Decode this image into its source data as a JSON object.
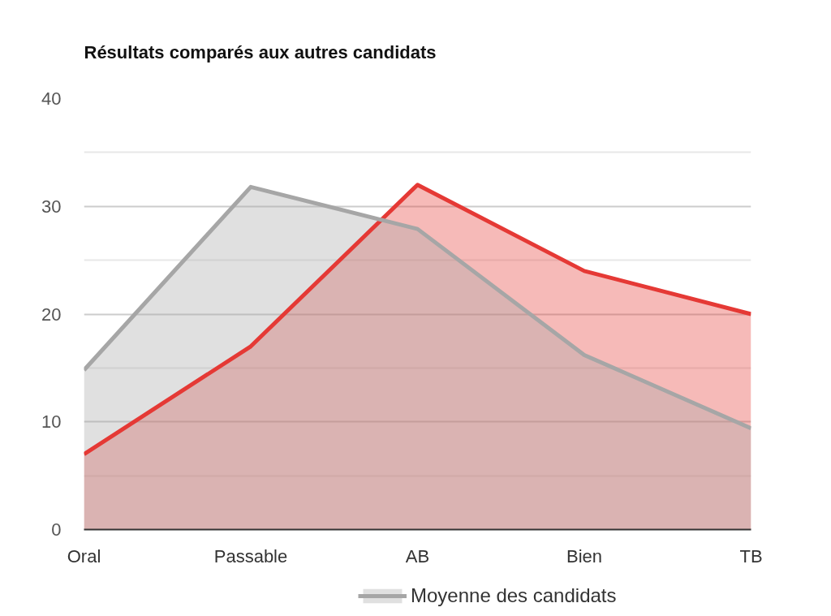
{
  "chart_data": {
    "type": "area",
    "title": "Résultats comparés aux autres candidats",
    "categories": [
      "Oral",
      "Passable",
      "AB",
      "Bien",
      "TB"
    ],
    "series": [
      {
        "color": "#e53935",
        "values": [
          7,
          17,
          32,
          24,
          20
        ]
      },
      {
        "name": "Moyenne des candidats",
        "color": "#a6a6a6",
        "values": [
          14.8,
          31.8,
          27.9,
          16.2,
          9.4
        ]
      }
    ],
    "ylim": [
      0,
      40
    ],
    "yticks": [
      0,
      {
        "value": 5,
        "label": null
      },
      10,
      {
        "value": 15,
        "label": null
      },
      20,
      {
        "value": 25,
        "label": null
      },
      30,
      {
        "value": 35,
        "label": null
      },
      40
    ],
    "grid": "y",
    "legend": "bottom"
  }
}
